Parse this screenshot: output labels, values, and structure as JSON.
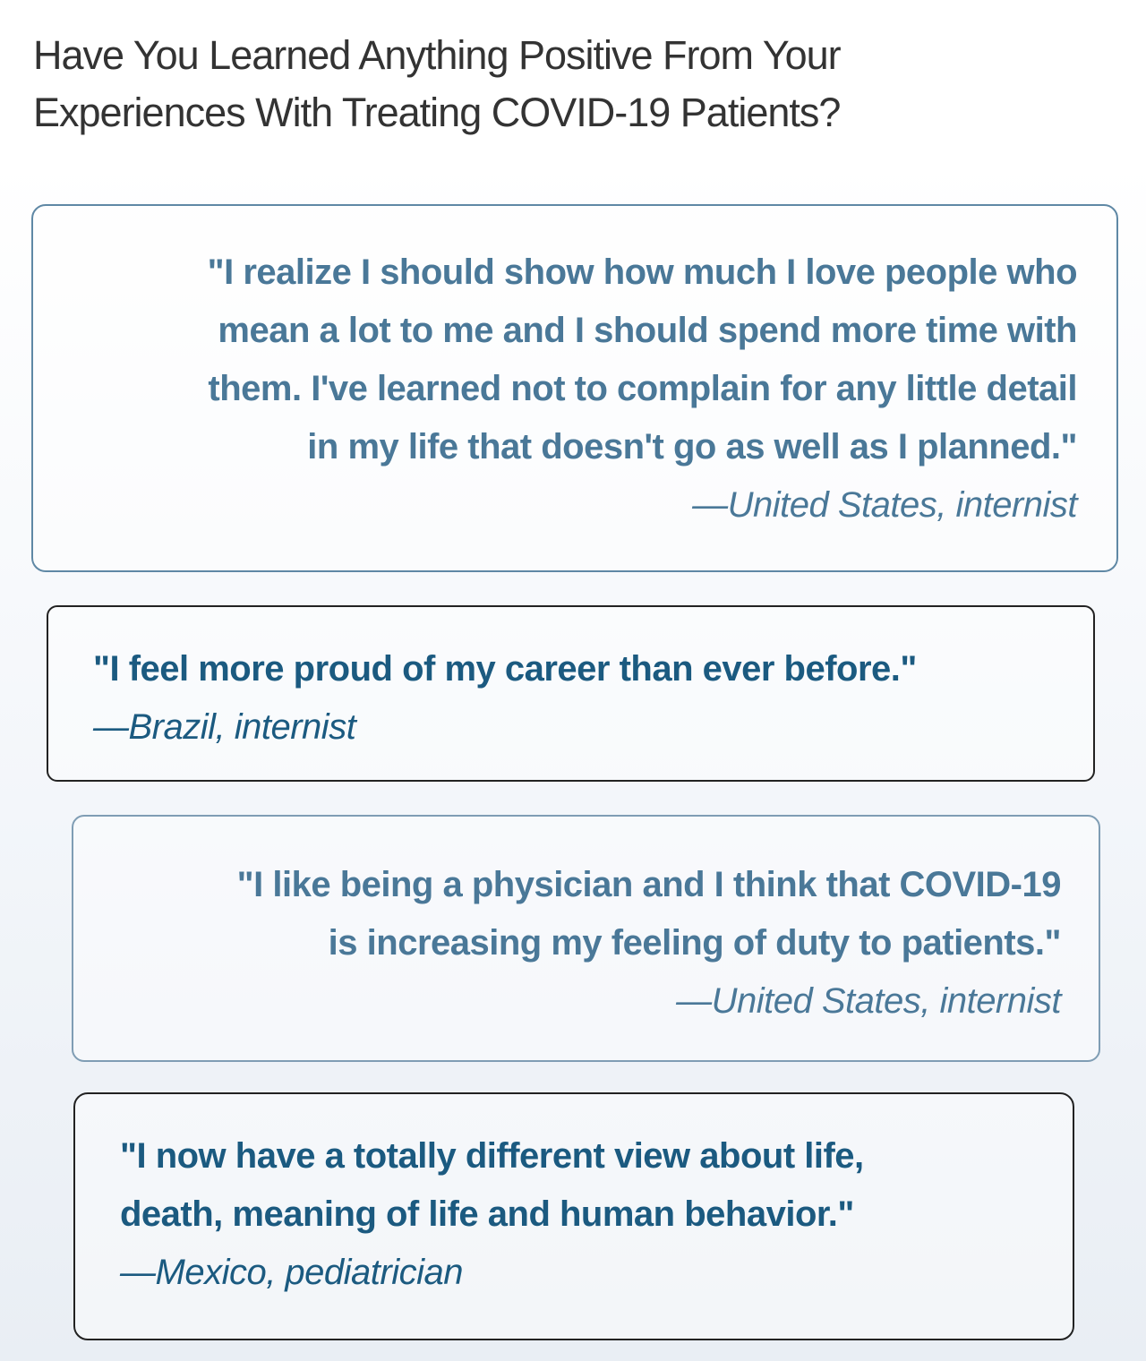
{
  "title": {
    "lines": [
      "Have You Learned Anything Positive From Your",
      "Experiences With Treating COVID-19 Patients?"
    ]
  },
  "quotes": [
    {
      "lines": [
        "\"I realize I should show how much I love people who",
        "mean a lot to me and I should spend more time with",
        "them. I've learned not to complain for any little detail",
        "in my life that doesn't go as well as I planned.\""
      ],
      "attribution": "—United States, internist"
    },
    {
      "lines": [
        "\"I feel more proud of my career than ever before.\""
      ],
      "attribution": "—Brazil, internist"
    },
    {
      "lines": [
        "\"I like being a physician and I think that COVID-19",
        "is increasing my feeling of duty to patients.\""
      ],
      "attribution": "—United States, internist"
    },
    {
      "lines": [
        "\"I now have a totally different view about life,",
        "death, meaning of life and human behavior.\""
      ],
      "attribution": "—Mexico, pediatrician"
    }
  ]
}
